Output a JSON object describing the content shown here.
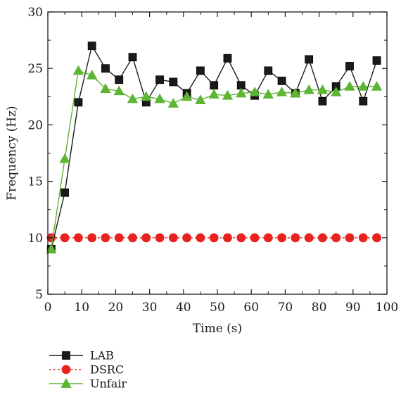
{
  "chart_data": {
    "type": "line",
    "title": "",
    "xlabel": "Time (s)",
    "ylabel": "Frequency (Hz)",
    "xlim": [
      0,
      100
    ],
    "ylim": [
      5,
      30
    ],
    "xticks": [
      0,
      10,
      20,
      30,
      40,
      50,
      60,
      70,
      80,
      90,
      100
    ],
    "yticks": [
      5,
      10,
      15,
      20,
      25,
      30
    ],
    "x_tick_labels": [
      "0",
      "10",
      "20",
      "30",
      "40",
      "50",
      "60",
      "70",
      "80",
      "90",
      "100"
    ],
    "y_tick_labels": [
      "5",
      "10",
      "15",
      "20",
      "25",
      "30"
    ],
    "grid": false,
    "legend_position": "bottom-left, below plot",
    "x": [
      1,
      5,
      9,
      13,
      17,
      21,
      25,
      29,
      33,
      37,
      41,
      45,
      49,
      53,
      57,
      61,
      65,
      69,
      73,
      77,
      81,
      85,
      89,
      93,
      97
    ],
    "series": [
      {
        "name": "LAB",
        "color": "#1a1a1a",
        "marker": "square",
        "values": [
          9.0,
          14.0,
          22.0,
          27.0,
          25.0,
          24.0,
          26.0,
          22.0,
          24.0,
          23.8,
          22.8,
          24.8,
          23.5,
          25.9,
          23.5,
          22.6,
          24.8,
          23.9,
          22.8,
          25.8,
          22.1,
          23.4,
          25.2,
          22.1,
          25.7
        ]
      },
      {
        "name": "DSRC",
        "color": "#e8221c",
        "marker": "circle",
        "values": [
          10,
          10,
          10,
          10,
          10,
          10,
          10,
          10,
          10,
          10,
          10,
          10,
          10,
          10,
          10,
          10,
          10,
          10,
          10,
          10,
          10,
          10,
          10,
          10,
          10
        ]
      },
      {
        "name": "Unfair",
        "color": "#5db533",
        "marker": "triangle",
        "values": [
          9.0,
          17.0,
          24.8,
          24.4,
          23.2,
          23.0,
          22.3,
          22.5,
          22.3,
          21.9,
          22.5,
          22.2,
          22.7,
          22.6,
          22.8,
          22.9,
          22.7,
          22.9,
          22.8,
          23.1,
          23.1,
          22.9,
          23.4,
          23.4,
          23.4
        ]
      }
    ]
  }
}
